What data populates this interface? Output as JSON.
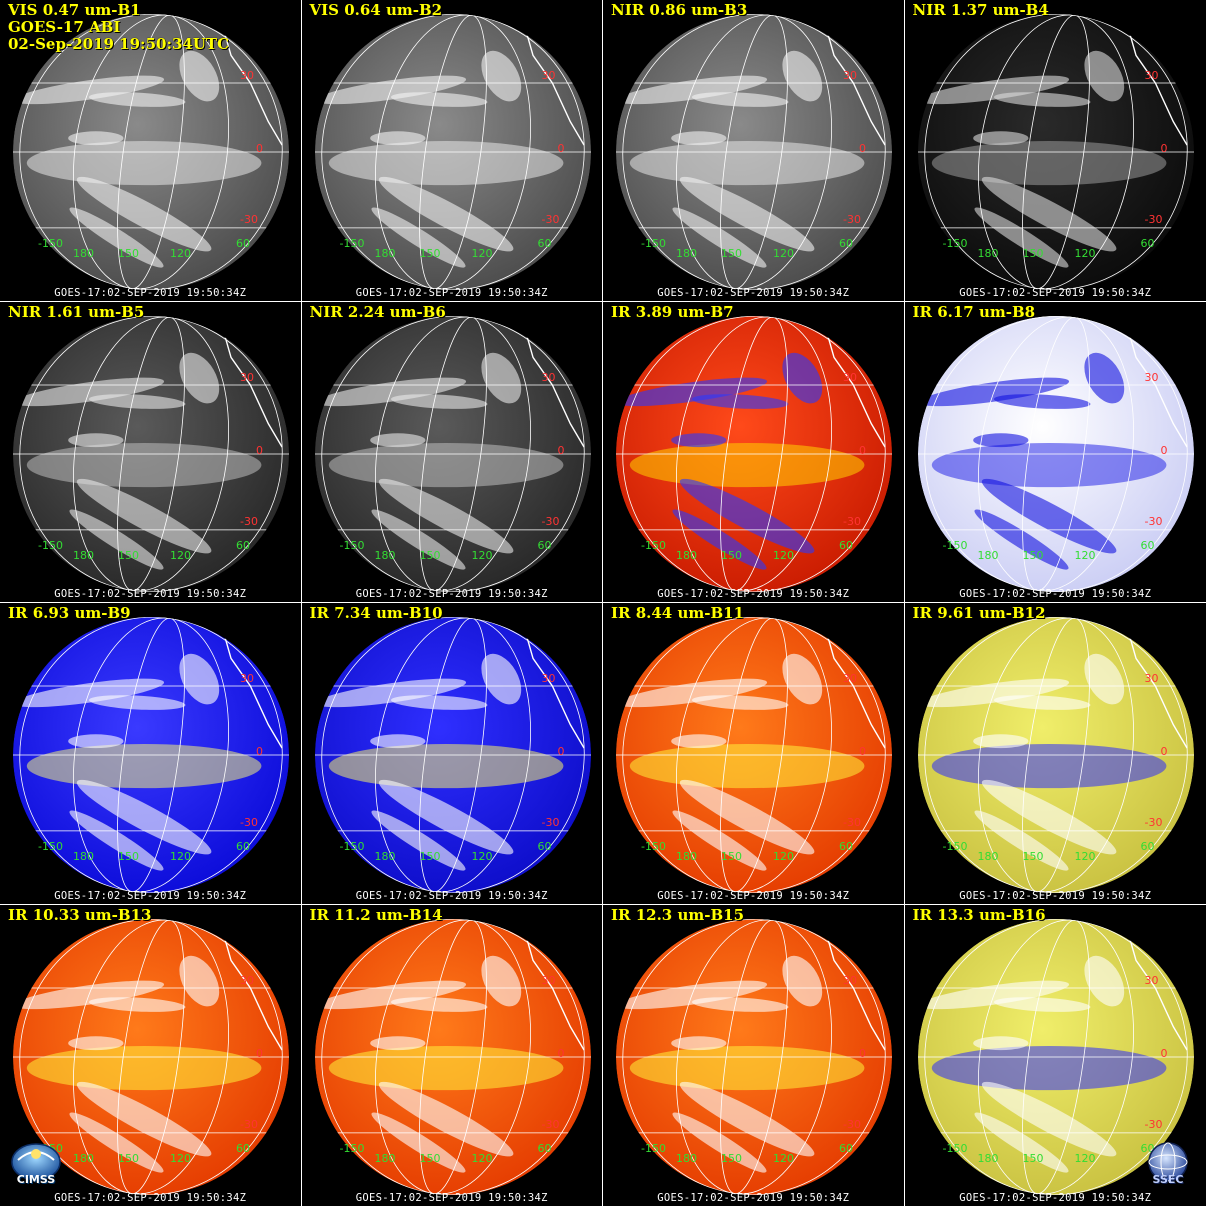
{
  "header": {
    "satellite": "GOES-17 ABI",
    "datetime": "02-Sep-2019 19:50:34UTC"
  },
  "footer_text": "GOES-17:02-SEP-2019 19:50:34Z",
  "lat_labels": [
    "30",
    "0",
    "-30"
  ],
  "lon_labels": [
    "-150",
    "180",
    "150",
    "120",
    "60"
  ],
  "panels": [
    {
      "title": "VIS 0.47 um-B1",
      "scheme": "gray"
    },
    {
      "title": "VIS 0.64 um-B2",
      "scheme": "gray"
    },
    {
      "title": "NIR 0.86 um-B3",
      "scheme": "gray"
    },
    {
      "title": "NIR 1.37 um-B4",
      "scheme": "darkgray"
    },
    {
      "title": "NIR 1.61 um-B5",
      "scheme": "midgray"
    },
    {
      "title": "NIR 2.24 um-B6",
      "scheme": "midgray"
    },
    {
      "title": "IR 3.89 um-B7",
      "scheme": "red"
    },
    {
      "title": "IR 6.17 um-B8",
      "scheme": "paleblue"
    },
    {
      "title": "IR 6.93 um-B9",
      "scheme": "blue"
    },
    {
      "title": "IR 7.34 um-B10",
      "scheme": "blueyellow"
    },
    {
      "title": "IR 8.44 um-B11",
      "scheme": "orange"
    },
    {
      "title": "IR 9.61 um-B12",
      "scheme": "yellowblue"
    },
    {
      "title": "IR 10.33 um-B13",
      "scheme": "orange"
    },
    {
      "title": "IR 11.2 um-B14",
      "scheme": "orange"
    },
    {
      "title": "IR 12.3 um-B15",
      "scheme": "orange"
    },
    {
      "title": "IR 13.3 um-B16",
      "scheme": "yellowblue"
    }
  ],
  "logos": {
    "left": "CIMSS",
    "right": "SSEC"
  },
  "colors": {
    "title": "#ffff00",
    "grid": "#ffffff",
    "lat_label": "#ff3333",
    "lon_label": "#33dd33",
    "background": "#000000"
  }
}
